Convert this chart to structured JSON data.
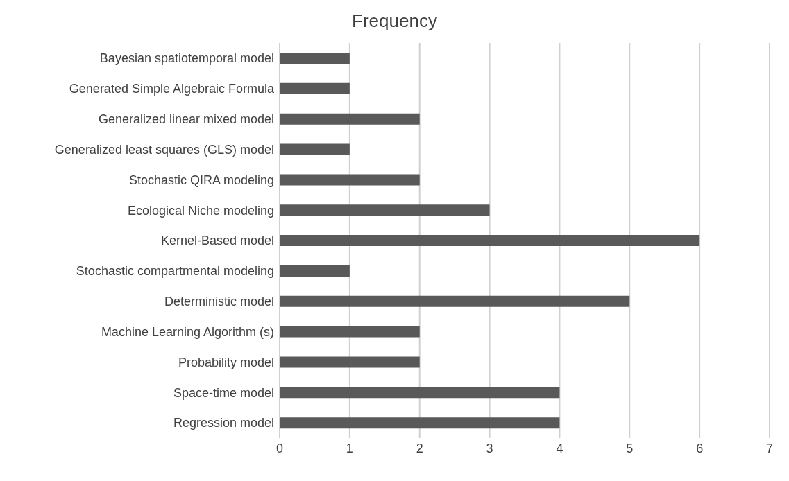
{
  "chart_data": {
    "type": "bar",
    "orientation": "horizontal",
    "title": "Frequency",
    "categories": [
      "Bayesian spatiotemporal model",
      "Generated Simple Algebraic Formula",
      "Generalized linear mixed model",
      "Generalized least squares (GLS) model",
      "Stochastic QIRA modeling",
      "Ecological Niche modeling",
      "Kernel-Based model",
      "Stochastic compartmental modeling",
      "Deterministic model",
      "Machine Learning Algorithm (s)",
      "Probability model",
      "Space-time model",
      "Regression model"
    ],
    "values": [
      1,
      1,
      2,
      1,
      2,
      3,
      6,
      1,
      5,
      2,
      2,
      4,
      4
    ],
    "color": "#595959",
    "xlim": [
      0,
      7
    ],
    "xticks": [
      0,
      1,
      2,
      3,
      4,
      5,
      6,
      7
    ],
    "grid": "x"
  }
}
